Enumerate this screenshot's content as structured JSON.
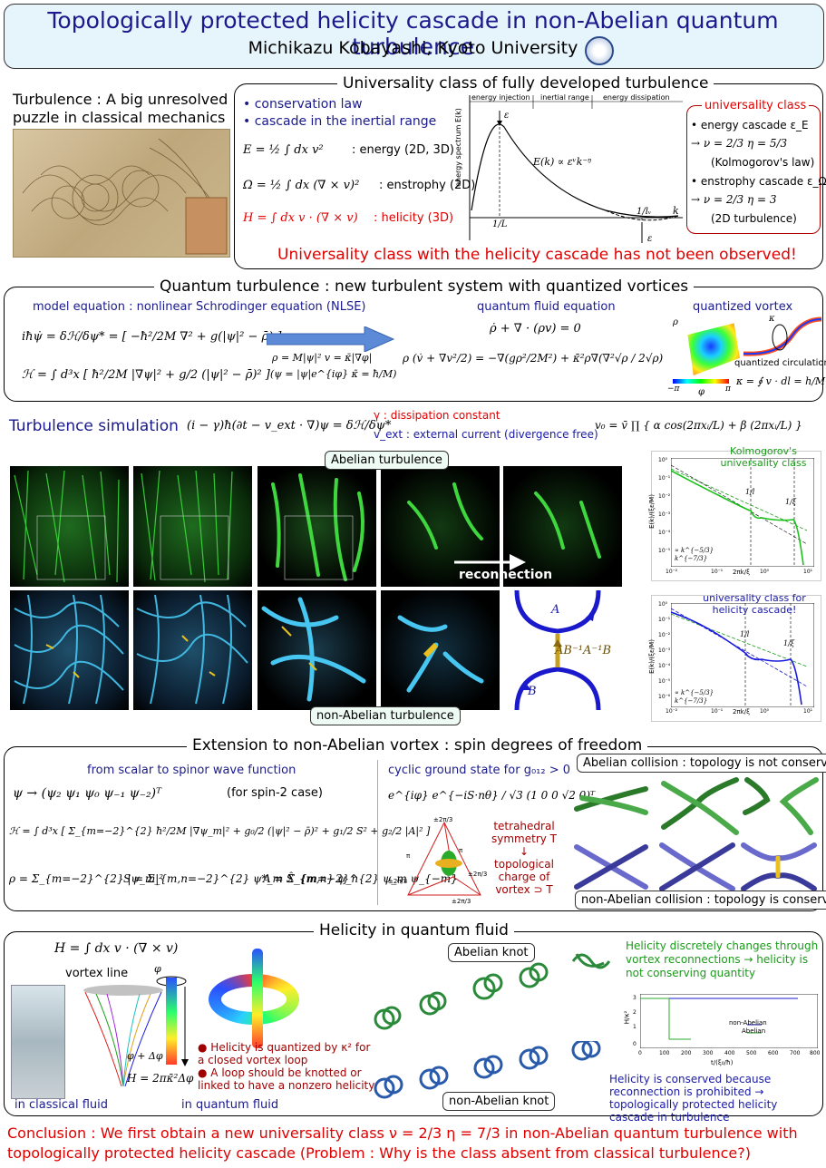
{
  "header": {
    "title": "Topologically protected helicity cascade in non-Abelian quantum turbulence",
    "author": "Michikazu Kobayashi, Kyoto University"
  },
  "universality": {
    "heading": "Universality class of fully developed turbulence",
    "left_caption": "Turbulence : A big unresolved puzzle in classical mechanics",
    "bullets": [
      "conservation law",
      "cascade in the inertial range"
    ],
    "energy_eq": "E = ½ ∫ dx v²",
    "energy_label": ": energy (2D, 3D)",
    "enstrophy_eq": "Ω = ½ ∫ dx (∇ × v)²",
    "enstrophy_label": ": enstrophy (2D)",
    "helicity_eq": "H = ∫ dx v · (∇ × v)",
    "helicity_label": ": helicity (3D)",
    "spectrum_ylabel": "energy spectrum E(k)",
    "range_injection": "energy injection",
    "range_inertial": "inertial range",
    "range_dissipation": "energy dissipation",
    "spectrum_formula": "E(k) ∝ εᵛk⁻ᵑ",
    "eps": "ε",
    "inv_L": "1/L",
    "inv_lv": "1/lᵥ",
    "k": "k",
    "class_title": "universality class",
    "class_lines": [
      "• energy cascade ε_E",
      "→  ν = 2/3   η = 5/3",
      "(Kolmogorov's law)",
      "• enstrophy cascade ε_Ω",
      "→  ν = 2/3   η = 3",
      "(2D turbulence)"
    ],
    "footer": "Universality class with the helicity cascade has not been observed!"
  },
  "quantum": {
    "heading": "Quantum turbulence : new turbulent system with quantized vortices",
    "model_label": "model equation : nonlinear Schrodinger equation (NLSE)",
    "nlse_1": "iħψ̇ = δℋ/δψ* = [ −ħ²/2M ∇² + g(|ψ|² − ρ̄) ] ψ",
    "nlse_2": "ℋ = ∫ d³x [ ħ²/2M |∇ψ|² + g/2 (|ψ|² − ρ̄)² ]",
    "map_1": "ρ = M|ψ|²     v = κ̄|∇φ|",
    "map_2": "(ψ = |ψ|e^{iφ}    κ̄ = ħ/M)",
    "fluid_label": "quantum fluid equation",
    "fluid_1": "ρ̇ + ∇ · (ρv) = 0",
    "fluid_2": "ρ (v̇ + ∇v²/2) = −∇(gρ²/2M²) + κ̄²ρ∇(∇²√ρ / 2√ρ)",
    "vortex_label": "quantized vortex",
    "rho": "ρ",
    "phi": "φ",
    "kappa": "κ",
    "minus_pi": "−π",
    "plus_pi": "π",
    "circ_label": "quantized circulation",
    "circ_eq": "κ = ∮ v · dl = h/M"
  },
  "simulation": {
    "heading": "Turbulence simulation",
    "eq": "(i − γ)ħ(∂t − v_ext · ∇)ψ = δℋ/δψ*",
    "gamma_note": "γ : dissipation constant",
    "vext_note": "v_ext : external current (divergence free)",
    "v0_eq": "v₀ = v̄ ∏ { α cos(2πxᵢ/L) + β (2πxᵢ/L) }",
    "abelian_tag": "Abelian turbulence",
    "nonabelian_tag": "non-Abelian turbulence",
    "reconnection": "reconnection",
    "A": "A",
    "B": "B",
    "ABA": "AB⁻¹A⁻¹B",
    "kolmo_label": "Kolmogorov's universality class",
    "helicity_label": "universality class for helicity cascade!",
    "plot1_ylabel": "E(k)/(ξε/M)",
    "plot2_ylabel": "E(k)/(ξε/M)",
    "plot_xlabel": "2πk/ξ",
    "legend_a": "∝ k^{−5/3}",
    "legend_b": "k^{−7/3}",
    "mark_1l": "1/l",
    "mark_1xi": "1/ξ",
    "x_ticks": [
      "10⁻²",
      "10⁻¹",
      "10⁰",
      "10¹"
    ],
    "y_ticks_1": [
      "10⁰",
      "10⁻¹",
      "10⁻²",
      "10⁻³",
      "10⁻⁴",
      "10⁻⁵"
    ],
    "y_ticks_2": [
      "10⁰",
      "10⁻¹",
      "10⁻²",
      "10⁻³",
      "10⁻⁴",
      "10⁻⁵",
      "10⁻⁶"
    ]
  },
  "extension": {
    "heading": "Extension to non-Abelian vortex : spin degrees of freedom",
    "spinor_label": "from scalar to spinor wave function",
    "psi_eq": "ψ → (ψ₂   ψ₁   ψ₀   ψ₋₁   ψ₋₂)ᵀ",
    "psi_case": "(for spin-2 case)",
    "ham_eq": "ℋ = ∫ d³x [ Σ_{m=−2}^{2} ħ²/2M |∇ψ_m|² + g₀/2 (|ψ|² − ρ̄)² + g₁/2 S² + g₂/2 |A|² ]",
    "rho_eq": "ρ = Σ_{m=−2}^{2} |ψ_m|²",
    "S_eq": "S = Σ_{m,n=−2}^{2} ψ*_m Ŝ_{m,n} ψ_n",
    "A_eq": "A = Σ_{m=−2}^{2} ψ_m ψ_{−m}",
    "ground_label": "cyclic ground state for g₀₁₂ > 0",
    "ground_eq": "e^{iφ} e^{−iS·nθ} / √3 (1   0   0   √2   0)ᵀ",
    "tetra_note": [
      "tetrahedral",
      "symmetry T",
      "↓",
      "topological",
      "charge of",
      "vortex ⊃ T"
    ],
    "tetra_marks": [
      "±2π/3",
      "π",
      "±2π/3",
      "π",
      "±2π/3",
      "±2π/3"
    ],
    "abelian_collision": "Abelian collision : topology is not conserved",
    "nonabelian_collision": "non-Abelian collision : topology is conserved"
  },
  "helicity": {
    "heading": "Helicity in quantum fluid",
    "H_eq": "H = ∫ dx v · (∇ × v)",
    "vortex_line": "vortex line",
    "in_classical": "in classical fluid",
    "in_quantum": "in quantum fluid",
    "phi": "φ",
    "phi_delta": "φ + Δφ",
    "quant_eq": "H = 2πκ̄²Δφ",
    "bullet_1": "Helicity is quantized by κ² for a closed vortex loop",
    "bullet_2": "A loop should be knotted or linked to have a nonzero helicity",
    "abelian_knot": "Abelian knot",
    "nonabelian_knot": "non-Abelian knot",
    "green_note": "Helicity discretely changes through vortex reconnections → helicity is not conserving quantity",
    "blue_note": "Helicity is conserved because reconnection is prohibited → topologically protected helicity cascade in turbulence",
    "plot_ylabel": "H/κ²",
    "plot_xlabel": "t/(ξ₀/ħ)",
    "legend_nonabelian": "non-Abelian",
    "legend_abelian": "Abelian",
    "x_ticks": [
      "0",
      "100",
      "200",
      "300",
      "400",
      "500",
      "600",
      "700",
      "800"
    ],
    "y_ticks": [
      "3",
      "2",
      "1",
      "0"
    ]
  },
  "conclusion": "Conclusion : We first obtain a new universality class ν = 2/3  η = 7/3 in non-Abelian quantum turbulence with topologically protected helicity cascade (Problem : Why is the class absent from classical turbulence?)",
  "colors": {
    "title_bg": "#e6f5fb",
    "red": "#e00000",
    "navy": "#1a1a8c",
    "green": "#1a9a1a",
    "vortex_green": "#2fcf2f",
    "vortex_blue": "#3fb8e8"
  }
}
